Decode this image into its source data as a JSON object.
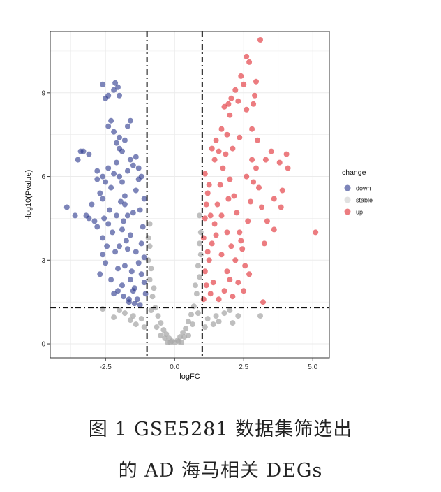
{
  "chart_data": {
    "type": "scatter",
    "title": "",
    "xlabel": "logFC",
    "ylabel": "-log10(Pvalue)",
    "xlim": [
      -4.5,
      5.6
    ],
    "ylim": [
      -0.5,
      11.2
    ],
    "x_ticks": [
      -2.5,
      0.0,
      2.5,
      5.0
    ],
    "x_tick_labels": [
      "-2.5",
      "0.0",
      "2.5",
      "5.0"
    ],
    "y_ticks": [
      0,
      3,
      6,
      9
    ],
    "y_tick_labels": [
      "0",
      "3",
      "6",
      "9"
    ],
    "grid": true,
    "legend": {
      "title": "change",
      "position": "right",
      "entries": [
        {
          "label": "down",
          "color": "#27348B"
        },
        {
          "label": "stable",
          "color": "#A9A9A9"
        },
        {
          "label": "up",
          "color": "#E0252B"
        }
      ]
    },
    "thresholds": {
      "logFC": [
        -1,
        1
      ],
      "neg_log10_pvalue": 1.3
    },
    "series": [
      {
        "name": "down",
        "color": "#27348B",
        "points": [
          [
            -3.9,
            4.9
          ],
          [
            -3.6,
            4.6
          ],
          [
            -3.2,
            4.6
          ],
          [
            -3.1,
            4.5
          ],
          [
            -3.5,
            6.6
          ],
          [
            -3.4,
            6.9
          ],
          [
            -3.3,
            6.9
          ],
          [
            -3.1,
            6.8
          ],
          [
            -2.8,
            5.9
          ],
          [
            -2.8,
            6.2
          ],
          [
            -2.6,
            6.0
          ],
          [
            -3.0,
            5.0
          ],
          [
            -2.9,
            4.4
          ],
          [
            -2.8,
            4.2
          ],
          [
            -2.7,
            5.4
          ],
          [
            -2.6,
            5.2
          ],
          [
            -2.5,
            5.8
          ],
          [
            -2.6,
            3.8
          ],
          [
            -2.4,
            4.3
          ],
          [
            -2.3,
            5.6
          ],
          [
            -2.4,
            6.3
          ],
          [
            -2.2,
            6.1
          ],
          [
            -2.1,
            6.5
          ],
          [
            -2.6,
            3.2
          ],
          [
            -2.5,
            2.9
          ],
          [
            -2.7,
            2.5
          ],
          [
            -2.3,
            2.3
          ],
          [
            -2.2,
            1.8
          ],
          [
            -2.0,
            3.5
          ],
          [
            -1.9,
            4.1
          ],
          [
            -2.1,
            4.6
          ],
          [
            -1.8,
            5.0
          ],
          [
            -1.7,
            6.2
          ],
          [
            -1.6,
            6.6
          ],
          [
            -1.5,
            6.4
          ],
          [
            -1.9,
            6.9
          ],
          [
            -1.8,
            7.3
          ],
          [
            -2.2,
            7.6
          ],
          [
            -2.1,
            7.2
          ],
          [
            -2.0,
            7.0
          ],
          [
            -2.3,
            8.0
          ],
          [
            -2.4,
            7.8
          ],
          [
            -2.0,
            7.4
          ],
          [
            -1.7,
            7.8
          ],
          [
            -1.6,
            8.0
          ],
          [
            -2.2,
            9.1
          ],
          [
            -2.4,
            8.9
          ],
          [
            -2.6,
            9.3
          ],
          [
            -2.5,
            8.8
          ],
          [
            -2.15,
            9.35
          ],
          [
            -2.05,
            9.2
          ],
          [
            -2.0,
            8.9
          ],
          [
            -1.9,
            2.1
          ],
          [
            -1.8,
            2.8
          ],
          [
            -1.7,
            3.4
          ],
          [
            -1.6,
            3.9
          ],
          [
            -1.5,
            4.7
          ],
          [
            -1.4,
            5.5
          ],
          [
            -1.3,
            5.9
          ],
          [
            -1.2,
            2.5
          ],
          [
            -1.1,
            3.1
          ],
          [
            -1.15,
            4.2
          ],
          [
            -1.25,
            4.8
          ],
          [
            -1.35,
            1.6
          ],
          [
            -1.45,
            2.0
          ],
          [
            -1.55,
            2.6
          ],
          [
            -1.65,
            1.5
          ],
          [
            -1.75,
            3.7
          ],
          [
            -1.85,
            4.4
          ],
          [
            -1.95,
            5.1
          ],
          [
            -2.05,
            2.7
          ],
          [
            -2.15,
            3.3
          ],
          [
            -2.25,
            4.0
          ],
          [
            -2.35,
            4.8
          ],
          [
            -2.45,
            3.5
          ],
          [
            -2.55,
            4.5
          ],
          [
            -1.05,
            1.8
          ],
          [
            -1.1,
            2.2
          ],
          [
            -1.2,
            3.6
          ],
          [
            -1.3,
            2.9
          ],
          [
            -1.4,
            3.3
          ],
          [
            -1.5,
            1.9
          ],
          [
            -1.6,
            2.3
          ],
          [
            -1.7,
            4.6
          ],
          [
            -1.8,
            5.3
          ],
          [
            -1.9,
            5.8
          ],
          [
            -2.0,
            6.0
          ],
          [
            -1.1,
            5.2
          ],
          [
            -1.2,
            6.0
          ],
          [
            -1.3,
            6.3
          ],
          [
            -1.4,
            6.7
          ],
          [
            -1.25,
            1.4
          ],
          [
            -1.45,
            1.45
          ],
          [
            -1.65,
            1.6
          ],
          [
            -1.85,
            1.7
          ],
          [
            -2.05,
            1.9
          ]
        ]
      },
      {
        "name": "stable",
        "color": "#A9A9A9",
        "points": [
          [
            0.0,
            0.05
          ],
          [
            -0.1,
            0.1
          ],
          [
            0.1,
            0.12
          ],
          [
            -0.2,
            0.2
          ],
          [
            0.2,
            0.25
          ],
          [
            -0.3,
            0.35
          ],
          [
            0.3,
            0.4
          ],
          [
            -0.4,
            0.5
          ],
          [
            0.4,
            0.55
          ],
          [
            -0.5,
            0.75
          ],
          [
            0.5,
            0.8
          ],
          [
            -0.6,
            1.0
          ],
          [
            0.6,
            1.05
          ],
          [
            -0.7,
            1.3
          ],
          [
            0.7,
            1.35
          ],
          [
            -0.8,
            1.7
          ],
          [
            0.8,
            1.8
          ],
          [
            -0.9,
            2.3
          ],
          [
            0.9,
            2.4
          ],
          [
            -0.95,
            3.0
          ],
          [
            0.95,
            3.2
          ],
          [
            -0.95,
            3.8
          ],
          [
            0.95,
            4.0
          ],
          [
            -0.9,
            4.3
          ],
          [
            0.9,
            4.6
          ],
          [
            -0.85,
            1.2
          ],
          [
            0.85,
            1.1
          ],
          [
            -0.65,
            0.6
          ],
          [
            0.65,
            0.7
          ],
          [
            -0.35,
            0.2
          ],
          [
            0.35,
            0.25
          ],
          [
            -0.15,
            0.05
          ],
          [
            0.15,
            0.08
          ],
          [
            -1.2,
            0.9
          ],
          [
            -1.5,
            1.0
          ],
          [
            -1.8,
            1.1
          ],
          [
            -1.4,
            0.7
          ],
          [
            -1.1,
            0.6
          ],
          [
            1.2,
            0.9
          ],
          [
            1.5,
            1.0
          ],
          [
            1.8,
            1.1
          ],
          [
            1.4,
            0.7
          ],
          [
            1.1,
            0.6
          ],
          [
            2.0,
            1.2
          ],
          [
            -2.0,
            1.2
          ],
          [
            2.3,
            1.0
          ],
          [
            -2.2,
            0.95
          ],
          [
            1.6,
            0.8
          ],
          [
            -1.6,
            0.85
          ],
          [
            0.5,
            0.3
          ],
          [
            -0.5,
            0.3
          ],
          [
            0.25,
            0.05
          ],
          [
            -0.25,
            0.05
          ],
          [
            2.1,
            0.75
          ],
          [
            -2.6,
            1.25
          ],
          [
            3.1,
            1.0
          ],
          [
            -0.75,
            2.0
          ],
          [
            0.75,
            2.1
          ],
          [
            -0.85,
            2.7
          ],
          [
            0.85,
            2.8
          ],
          [
            -0.9,
            3.5
          ],
          [
            0.9,
            3.6
          ]
        ]
      },
      {
        "name": "up",
        "color": "#E0252B",
        "points": [
          [
            3.1,
            10.9
          ],
          [
            2.6,
            10.3
          ],
          [
            2.7,
            10.1
          ],
          [
            2.4,
            9.6
          ],
          [
            2.5,
            9.3
          ],
          [
            2.95,
            9.4
          ],
          [
            2.9,
            8.9
          ],
          [
            2.85,
            8.6
          ],
          [
            2.2,
            9.1
          ],
          [
            2.0,
            8.2
          ],
          [
            1.95,
            8.6
          ],
          [
            2.05,
            8.8
          ],
          [
            2.3,
            8.7
          ],
          [
            2.6,
            8.4
          ],
          [
            1.8,
            8.5
          ],
          [
            1.7,
            7.7
          ],
          [
            1.5,
            7.3
          ],
          [
            1.9,
            7.5
          ],
          [
            2.8,
            7.7
          ],
          [
            3.0,
            7.3
          ],
          [
            3.3,
            6.6
          ],
          [
            3.5,
            6.9
          ],
          [
            3.8,
            6.5
          ],
          [
            4.1,
            6.3
          ],
          [
            4.05,
            6.8
          ],
          [
            3.9,
            5.5
          ],
          [
            3.6,
            5.2
          ],
          [
            3.85,
            4.9
          ],
          [
            3.35,
            4.4
          ],
          [
            3.6,
            4.1
          ],
          [
            3.25,
            3.6
          ],
          [
            5.1,
            4.0
          ],
          [
            3.2,
            1.5
          ],
          [
            2.7,
            2.5
          ],
          [
            2.5,
            1.9
          ],
          [
            2.3,
            2.2
          ],
          [
            2.1,
            1.7
          ],
          [
            1.9,
            2.6
          ],
          [
            1.7,
            3.2
          ],
          [
            1.5,
            3.9
          ],
          [
            1.3,
            4.6
          ],
          [
            1.2,
            5.4
          ],
          [
            1.1,
            6.1
          ],
          [
            1.15,
            2.1
          ],
          [
            1.25,
            3.0
          ],
          [
            1.35,
            3.6
          ],
          [
            1.45,
            4.3
          ],
          [
            1.55,
            5.0
          ],
          [
            1.65,
            5.7
          ],
          [
            1.75,
            6.3
          ],
          [
            1.85,
            6.8
          ],
          [
            2.0,
            5.9
          ],
          [
            2.15,
            5.3
          ],
          [
            2.25,
            4.7
          ],
          [
            2.35,
            4.0
          ],
          [
            2.45,
            3.4
          ],
          [
            2.55,
            2.8
          ],
          [
            2.65,
            4.4
          ],
          [
            2.75,
            5.1
          ],
          [
            2.85,
            5.8
          ],
          [
            2.95,
            6.3
          ],
          [
            3.05,
            5.6
          ],
          [
            3.15,
            4.9
          ],
          [
            1.05,
            1.6
          ],
          [
            1.1,
            2.6
          ],
          [
            1.2,
            3.3
          ],
          [
            1.3,
            1.8
          ],
          [
            1.4,
            2.2
          ],
          [
            1.6,
            1.6
          ],
          [
            1.8,
            1.9
          ],
          [
            2.0,
            2.3
          ],
          [
            2.2,
            3.0
          ],
          [
            2.4,
            3.7
          ],
          [
            2.6,
            6.0
          ],
          [
            2.8,
            6.6
          ],
          [
            1.45,
            6.6
          ],
          [
            1.6,
            6.9
          ],
          [
            1.35,
            7.0
          ],
          [
            2.1,
            7.0
          ],
          [
            2.35,
            7.4
          ],
          [
            1.05,
            3.8
          ],
          [
            1.1,
            4.5
          ],
          [
            1.15,
            5.0
          ],
          [
            1.25,
            5.7
          ],
          [
            1.7,
            4.6
          ],
          [
            1.9,
            4.0
          ],
          [
            2.05,
            3.5
          ],
          [
            1.95,
            5.2
          ]
        ]
      }
    ]
  },
  "caption": {
    "line1": "图 1   GSE5281 数据集筛选出",
    "line2": "的 AD 海马相关 DEGs"
  }
}
